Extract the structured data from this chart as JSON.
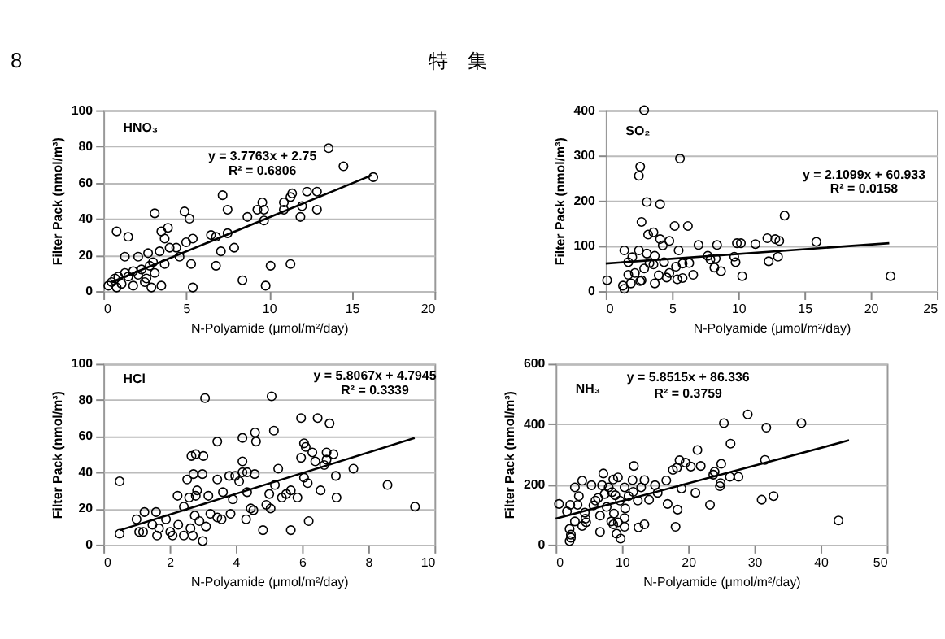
{
  "chart_data": [
    {
      "type": "scatter",
      "xlabel": "N-Polyamide (μmol/m²/day)",
      "ylabel": "Filter Pack (nmol/m³)",
      "annotations": [
        "8",
        "特　集",
        "HNO₃",
        "y = 3.7763x + 2.75",
        "R² = 0.6806"
      ],
      "xlim": [
        0,
        20
      ],
      "xticks": [
        0,
        5,
        10,
        15,
        20
      ],
      "ylim": [
        0,
        100
      ],
      "yticks": [
        0,
        20,
        40,
        60,
        80,
        100
      ],
      "grid": "y",
      "marker": "circle",
      "series": [
        {
          "color": "#000000",
          "x": [
            13.6,
            14.5,
            16.3,
            12.9,
            12.3,
            11.4,
            10.9,
            9.6,
            9.7,
            9.3,
            7.2,
            7.5,
            4.9,
            5.2,
            3.1,
            8.7,
            10.9,
            11.3,
            12.0,
            11.9,
            12.9,
            9.7,
            3.9,
            3.5,
            0.8,
            1.5,
            3.7,
            6.5,
            6.8,
            7.5,
            5.4,
            5.0,
            7.1,
            7.9,
            4.0,
            4.4,
            3.4,
            2.7,
            4.6,
            1.3,
            2.1,
            3.7,
            5.3,
            6.8,
            10.1,
            11.3,
            8.4,
            9.8,
            5.4,
            3.5,
            2.9,
            0.3,
            0.5,
            0.7,
            0.9,
            1.1,
            1.3,
            1.5,
            1.8,
            2.1,
            2.3,
            2.6,
            2.8,
            3.1,
            3.0,
            1.8,
            0.8,
            2.5
          ],
          "values": [
            79,
            69,
            63,
            55,
            55,
            54,
            49,
            49,
            45,
            45,
            53,
            45,
            44,
            40,
            43,
            41,
            45,
            52,
            47,
            41,
            45,
            39,
            35,
            33,
            33,
            30,
            29,
            31,
            30,
            32,
            29,
            27,
            22,
            24,
            24,
            24,
            22,
            21,
            19,
            19,
            19,
            15,
            15,
            14,
            14,
            15,
            6,
            3,
            2,
            3,
            2,
            3,
            5,
            7,
            8,
            4,
            10,
            8,
            11,
            9,
            12,
            7,
            14,
            10,
            16,
            3,
            2,
            5
          ]
        },
        {
          "type": "line",
          "color": "#000000",
          "marker": "none",
          "x": [
            0.5,
            16.2
          ],
          "values": [
            5,
            64
          ]
        }
      ]
    },
    {
      "type": "scatter",
      "xlabel": "N-Polyamide (μmol/m²/day)",
      "ylabel": "Filter Pack (nmol/m³)",
      "annotations": [
        "SO₂",
        "y = 2.1099x + 60.933",
        "R² = 0.0158"
      ],
      "xlim": [
        0,
        25
      ],
      "xticks": [
        0,
        5,
        10,
        15,
        20,
        25
      ],
      "ylim": [
        0,
        400
      ],
      "yticks": [
        0,
        100,
        200,
        300,
        400
      ],
      "grid": "y",
      "marker": "circle",
      "series": [
        {
          "color": "#000000",
          "x": [
            2.9,
            2.5,
            2.6,
            5.6,
            3.1,
            4.1,
            13.5,
            2.7,
            5.2,
            6.2,
            3.6,
            3.2,
            12.2,
            12.8,
            13.1,
            15.9,
            11.3,
            9.9,
            10.2,
            7.0,
            8.4,
            4.8,
            4.1,
            4.3,
            1.4,
            2.5,
            5.5,
            3.1,
            3.7,
            7.7,
            13.0,
            9.7,
            8.3,
            7.9,
            9.8,
            12.3,
            2.0,
            1.7,
            3.3,
            5.8,
            6.3,
            8.2,
            8.7,
            10.3,
            6.6,
            5.8,
            4.6,
            4.0,
            2.7,
            1.9,
            1.3,
            1.4,
            0.1,
            21.5,
            2.2,
            2.9,
            3.6,
            4.4,
            4.8,
            5.3,
            2.6,
            3.7,
            5.4,
            1.7
          ],
          "values": [
            400,
            255,
            275,
            293,
            197,
            192,
            167,
            153,
            144,
            144,
            130,
            125,
            117,
            115,
            111,
            109,
            104,
            106,
            106,
            102,
            102,
            111,
            115,
            101,
            90,
            90,
            90,
            83,
            78,
            78,
            76,
            76,
            72,
            70,
            64,
            66,
            75,
            64,
            62,
            61,
            62,
            52,
            44,
            33,
            36,
            29,
            30,
            35,
            24,
            17,
            12,
            5,
            24,
            33,
            40,
            50,
            59,
            64,
            40,
            54,
            22,
            17,
            26,
            36
          ]
        },
        {
          "type": "line",
          "color": "#000000",
          "marker": "none",
          "x": [
            0,
            21.4
          ],
          "values": [
            61,
            106
          ]
        }
      ]
    },
    {
      "type": "scatter",
      "xlabel": "N-Polyamide (μmol/m²/day)",
      "ylabel": "Filter Pack (nmol/m³)",
      "annotations": [
        "HCl",
        "y = 5.8067x + 4.7945",
        "R² = 0.3339"
      ],
      "xlim": [
        0,
        10
      ],
      "xticks": [
        0,
        2,
        4,
        6,
        8,
        10
      ],
      "ylim": [
        0,
        100
      ],
      "yticks": [
        0,
        20,
        40,
        60,
        80,
        100
      ],
      "grid": "y",
      "marker": "circle",
      "series": [
        {
          "color": "#000000",
          "x": [
            3.07,
            5.08,
            6.47,
            5.97,
            6.83,
            4.58,
            5.15,
            4.2,
            3.44,
            4.61,
            6.06,
            6.11,
            6.31,
            6.74,
            6.95,
            2.79,
            3.02,
            2.66,
            5.97,
            6.74,
            6.4,
            4.2,
            6.67,
            7.55,
            5.28,
            4.2,
            3.8,
            2.99,
            2.72,
            3.98,
            4.57,
            4.34,
            7.02,
            6.06,
            3.44,
            4.1,
            2.53,
            0.49,
            8.58,
            6.17,
            5.18,
            2.83,
            5.66,
            6.56,
            3.61,
            4.34,
            3.17,
            2.79,
            5.52,
            5.01,
            5.39,
            5.86,
            7.04,
            3.91,
            2.59,
            2.24,
            4.92,
            5.05,
            4.45,
            4.53,
            9.41,
            2.43,
            1.24,
            1.59,
            4.31,
            6.2,
            1.0,
            5.66,
            4.82,
            3.0,
            0.49,
            1.08,
            1.2,
            1.48,
            1.68,
            1.89,
            2.02,
            2.26,
            2.43,
            2.63,
            2.76,
            2.9,
            3.1,
            3.23,
            1.62,
            2.09,
            2.7,
            3.44,
            3.84,
            3.57
          ],
          "values": [
            81,
            82,
            70,
            70,
            67,
            62,
            63,
            59,
            57,
            57,
            56,
            54,
            51,
            51,
            50,
            50,
            49,
            49,
            48,
            47,
            46,
            46,
            44,
            42,
            42,
            40,
            38,
            39,
            39,
            38,
            39,
            40,
            38,
            37,
            36,
            35,
            36,
            35,
            33,
            34,
            33,
            30,
            30,
            30,
            29,
            29,
            27,
            27,
            28,
            28,
            26,
            26,
            26,
            25,
            26,
            27,
            22,
            20,
            20,
            19,
            21,
            21,
            18,
            18,
            14,
            13,
            14,
            8,
            8,
            2,
            6,
            7,
            7,
            11,
            9,
            14,
            7,
            11,
            5,
            9,
            16,
            13,
            10,
            17,
            5,
            5,
            5,
            15,
            17,
            14
          ]
        },
        {
          "type": "line",
          "color": "#000000",
          "marker": "none",
          "x": [
            0.5,
            9.4
          ],
          "values": [
            8,
            59
          ]
        }
      ]
    },
    {
      "type": "scatter",
      "xlabel": "N-Polyamide (μmol/m²/day)",
      "ylabel": "Filter Pack (nmol/m³)",
      "annotations": [
        "NH₃",
        "y = 5.8515x + 86.336",
        "R² = 0.3759"
      ],
      "xlim": [
        0,
        50
      ],
      "xticks": [
        0,
        10,
        20,
        30,
        40,
        50
      ],
      "ylim": [
        0,
        600
      ],
      "yticks": [
        0,
        200,
        400,
        600
      ],
      "grid": "y",
      "marker": "circle",
      "series": [
        {
          "color": "#000000",
          "x": [
            29.0,
            25.4,
            31.8,
            37.1,
            26.4,
            21.4,
            31.6,
            11.8,
            21.9,
            19.6,
            18.7,
            18.3,
            17.7,
            20.4,
            25.0,
            24.0,
            23.8,
            26.3,
            27.6,
            16.7,
            15.0,
            7.2,
            9.4,
            4.0,
            13.4,
            11.6,
            8.7,
            2.9,
            5.4,
            7.0,
            8.0,
            8.5,
            10.4,
            12.9,
            11.7,
            15.4,
            19.0,
            21.1,
            24.8,
            24.9,
            11.0,
            9.0,
            6.4,
            3.5,
            14.1,
            3.3,
            2.2,
            0.5,
            5.7,
            7.7,
            10.5,
            16.9,
            18.4,
            23.3,
            31.1,
            32.9,
            1.7,
            4.4,
            6.7,
            8.8,
            10.4,
            9.4,
            8.4,
            8.7,
            4.6,
            2.9,
            2.1,
            2.3,
            2.1,
            2.3,
            4.0,
            4.5,
            6.7,
            9.2,
            9.8,
            10.4,
            12.5,
            13.4,
            18.1,
            42.7,
            6.0,
            7.4,
            9.7,
            12.4
          ],
          "values": [
            432,
            403,
            388,
            403,
            335,
            314,
            281,
            261,
            261,
            272,
            280,
            255,
            248,
            259,
            268,
            242,
            232,
            225,
            225,
            213,
            197,
            236,
            223,
            212,
            214,
            214,
            216,
            190,
            197,
            197,
            190,
            174,
            190,
            190,
            175,
            172,
            186,
            172,
            194,
            204,
            161,
            164,
            155,
            161,
            149,
            132,
            132,
            135,
            130,
            125,
            120,
            135,
            116,
            132,
            149,
            161,
            110,
            106,
            96,
            103,
            88,
            74,
            77,
            67,
            74,
            77,
            52,
            33,
            12,
            23,
            62,
            86,
            42,
            36,
            20,
            59,
            57,
            67,
            59,
            80,
            146,
            168,
            146,
            146
          ]
        },
        {
          "type": "line",
          "color": "#000000",
          "marker": "none",
          "x": [
            0,
            44.3
          ],
          "values": [
            86,
            346
          ]
        }
      ]
    }
  ]
}
